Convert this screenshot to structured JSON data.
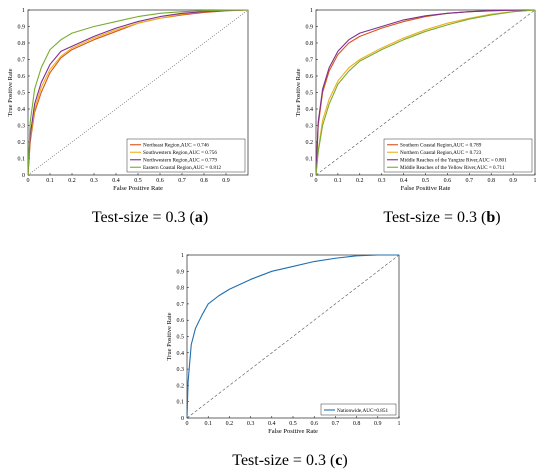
{
  "figure": {
    "captions": [
      {
        "prefix": "Test-size = 0.3 (",
        "letter": "a",
        "suffix": ")"
      },
      {
        "prefix": "Test-size = 0.3 (",
        "letter": "b",
        "suffix": ")"
      },
      {
        "prefix": "Test-size = 0.3 (",
        "letter": "c",
        "suffix": ")"
      }
    ]
  },
  "chart_data": [
    {
      "type": "line",
      "xlabel": "False Positive Rate",
      "ylabel": "True Positive Rate",
      "xlim": [
        0,
        1
      ],
      "ylim": [
        0,
        1
      ],
      "xticks": [
        "0",
        "0.1",
        "0.2",
        "0.3",
        "0.4",
        "0.5",
        "0.6",
        "0.7",
        "0.8",
        "0.9"
      ],
      "yticks": [
        "0",
        "0.1",
        "0.2",
        "0.3",
        "0.4",
        "0.5",
        "0.6",
        "0.7",
        "0.8",
        "0.9",
        "1"
      ],
      "legend_position": "bottom-right",
      "diagonal": "dotted",
      "colors": {
        "diagonal": "#555555"
      },
      "series": [
        {
          "name": "Northeast Region,AUC = 0.746",
          "color": "#d9541a",
          "x": [
            0,
            0.01,
            0.03,
            0.06,
            0.1,
            0.15,
            0.2,
            0.3,
            0.4,
            0.5,
            0.6,
            0.7,
            0.8,
            0.9,
            1
          ],
          "y": [
            0,
            0.2,
            0.38,
            0.5,
            0.62,
            0.71,
            0.76,
            0.82,
            0.87,
            0.92,
            0.95,
            0.97,
            0.985,
            0.995,
            1
          ]
        },
        {
          "name": "Southwestern Region,AUC = 0.756",
          "color": "#edb120",
          "x": [
            0,
            0.01,
            0.03,
            0.06,
            0.1,
            0.15,
            0.2,
            0.3,
            0.4,
            0.5,
            0.6,
            0.7,
            0.8,
            0.9,
            1
          ],
          "y": [
            0,
            0.22,
            0.4,
            0.53,
            0.64,
            0.72,
            0.77,
            0.83,
            0.88,
            0.92,
            0.95,
            0.975,
            0.99,
            0.997,
            1
          ]
        },
        {
          "name": "Northwestern Region,AUC = 0.779",
          "color": "#7e2f8e",
          "x": [
            0,
            0.01,
            0.03,
            0.06,
            0.1,
            0.15,
            0.2,
            0.3,
            0.4,
            0.5,
            0.6,
            0.7,
            0.8,
            0.9,
            1
          ],
          "y": [
            0,
            0.24,
            0.43,
            0.56,
            0.67,
            0.75,
            0.78,
            0.84,
            0.89,
            0.93,
            0.96,
            0.98,
            0.99,
            0.997,
            1
          ]
        },
        {
          "name": "Eastern Coastal Region,AUC = 0.812",
          "color": "#77ac30",
          "x": [
            0,
            0.01,
            0.03,
            0.06,
            0.1,
            0.15,
            0.2,
            0.3,
            0.4,
            0.5,
            0.6,
            0.7,
            0.8,
            0.9,
            1
          ],
          "y": [
            0,
            0.32,
            0.52,
            0.65,
            0.76,
            0.82,
            0.86,
            0.9,
            0.93,
            0.96,
            0.98,
            0.99,
            0.995,
            0.999,
            1
          ]
        }
      ]
    },
    {
      "type": "line",
      "xlabel": "False Positive Rate",
      "ylabel": "True Positive Rate",
      "xlim": [
        0,
        1
      ],
      "ylim": [
        0,
        1
      ],
      "xticks": [
        "0",
        "0.1",
        "0.2",
        "0.3",
        "0.4",
        "0.5",
        "0.6",
        "0.7",
        "0.8",
        "0.9",
        "1"
      ],
      "yticks": [
        "0",
        "0.1",
        "0.2",
        "0.3",
        "0.4",
        "0.5",
        "0.6",
        "0.7",
        "0.8",
        "0.9",
        "1"
      ],
      "legend_position": "bottom-right",
      "diagonal": "dashed",
      "colors": {
        "diagonal": "#555555"
      },
      "series": [
        {
          "name": "Southern Coastal Region,AUC = 0.789",
          "color": "#d9541a",
          "x": [
            0,
            0.01,
            0.03,
            0.06,
            0.1,
            0.15,
            0.2,
            0.3,
            0.4,
            0.5,
            0.6,
            0.7,
            0.8,
            0.9,
            1
          ],
          "y": [
            0,
            0.3,
            0.5,
            0.63,
            0.73,
            0.8,
            0.84,
            0.89,
            0.93,
            0.96,
            0.98,
            0.99,
            0.995,
            0.999,
            1
          ]
        },
        {
          "name": "Northern Coastal Region,AUC = 0.723",
          "color": "#edb120",
          "x": [
            0,
            0.01,
            0.03,
            0.06,
            0.1,
            0.15,
            0.2,
            0.3,
            0.4,
            0.5,
            0.6,
            0.7,
            0.8,
            0.9,
            1
          ],
          "y": [
            0,
            0.15,
            0.33,
            0.46,
            0.57,
            0.65,
            0.7,
            0.77,
            0.83,
            0.88,
            0.92,
            0.95,
            0.975,
            0.99,
            1
          ]
        },
        {
          "name": "Middle Reaches of the Yangtze River,AUC = 0.801",
          "color": "#7e2f8e",
          "x": [
            0,
            0.01,
            0.03,
            0.06,
            0.1,
            0.15,
            0.2,
            0.3,
            0.4,
            0.5,
            0.6,
            0.7,
            0.8,
            0.9,
            1
          ],
          "y": [
            0,
            0.32,
            0.52,
            0.65,
            0.75,
            0.82,
            0.86,
            0.9,
            0.94,
            0.965,
            0.98,
            0.99,
            0.996,
            0.999,
            1
          ]
        },
        {
          "name": "Middle Reaches of the Yellow River,AUC = 0.711",
          "color": "#77ac30",
          "x": [
            0,
            0.01,
            0.03,
            0.06,
            0.1,
            0.15,
            0.2,
            0.3,
            0.4,
            0.5,
            0.6,
            0.7,
            0.8,
            0.9,
            1
          ],
          "y": [
            0,
            0.14,
            0.3,
            0.43,
            0.55,
            0.63,
            0.69,
            0.76,
            0.82,
            0.87,
            0.91,
            0.945,
            0.97,
            0.99,
            1
          ]
        }
      ]
    },
    {
      "type": "line",
      "xlabel": "False Positive Rate",
      "ylabel": "True Positive Rate",
      "xlim": [
        0,
        1
      ],
      "ylim": [
        0,
        1
      ],
      "xticks": [
        "0",
        "0.1",
        "0.2",
        "0.3",
        "0.4",
        "0.5",
        "0.6",
        "0.7",
        "0.8",
        "0.9",
        "1"
      ],
      "yticks": [
        "0",
        "0.1",
        "0.2",
        "0.3",
        "0.4",
        "0.5",
        "0.6",
        "0.7",
        "0.8",
        "0.9",
        "1"
      ],
      "legend_position": "bottom-right",
      "diagonal": "dashed",
      "colors": {
        "diagonal": "#555555"
      },
      "series": [
        {
          "name": "Nationwide,AUC=0.851",
          "color": "#1f6fb0",
          "x": [
            0,
            0.005,
            0.02,
            0.04,
            0.07,
            0.1,
            0.15,
            0.2,
            0.3,
            0.4,
            0.5,
            0.6,
            0.7,
            0.8,
            0.9,
            1
          ],
          "y": [
            0,
            0.22,
            0.45,
            0.55,
            0.63,
            0.7,
            0.75,
            0.79,
            0.85,
            0.9,
            0.93,
            0.96,
            0.98,
            0.995,
            1,
            1
          ]
        }
      ]
    }
  ]
}
